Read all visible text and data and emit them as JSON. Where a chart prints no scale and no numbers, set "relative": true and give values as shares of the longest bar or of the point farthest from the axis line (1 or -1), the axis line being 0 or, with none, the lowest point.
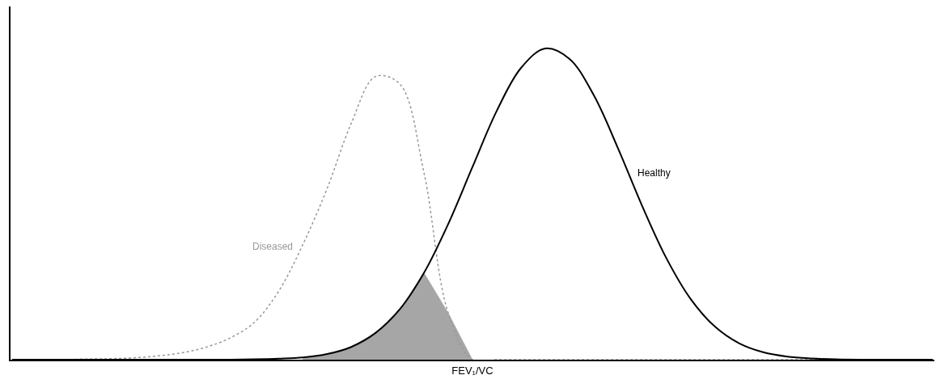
{
  "chart_data": {
    "type": "line",
    "relative": true,
    "xlabel": "FEV₁/VC",
    "legend": false,
    "tick_labels": false,
    "categories": [
      null,
      null,
      null,
      null,
      null,
      null,
      null,
      null,
      null,
      null,
      null,
      null,
      null,
      null,
      null,
      null,
      null,
      null,
      null,
      null,
      null,
      null,
      null,
      null,
      null,
      null,
      null,
      null,
      null,
      null,
      null,
      null,
      null,
      null,
      null,
      null,
      null,
      null,
      null
    ],
    "series": [
      {
        "type": "area",
        "color": "#a6a6a6",
        "values": [
          null,
          null,
          null,
          null,
          null,
          null,
          null,
          null,
          null,
          null,
          null,
          null,
          0.007,
          0.018,
          0.041,
          0.086,
          0.162,
          0.279,
          0.15,
          0,
          null,
          null,
          null,
          null,
          null,
          null,
          null,
          null,
          null,
          null,
          null,
          null,
          null,
          null,
          null,
          null,
          null,
          null,
          null
        ]
      },
      {
        "name": "Diseased",
        "color": "#999999",
        "line_style": "dotted",
        "values": [
          0,
          0,
          0,
          0.002,
          0.003,
          0.006,
          0.012,
          0.022,
          0.04,
          0.07,
          0.12,
          0.22,
          0.37,
          0.55,
          0.76,
          0.91,
          0.886,
          0.6,
          0.15,
          0,
          0,
          0,
          0,
          0,
          0,
          0,
          0,
          0,
          0,
          0,
          0,
          0,
          0,
          0,
          0,
          0,
          0,
          0,
          0
        ]
      },
      {
        "name": "Healthy",
        "color": "#000000",
        "line_style": "solid",
        "values": [
          0,
          0,
          0,
          0,
          0,
          0,
          0,
          0,
          0,
          0,
          0.001,
          0.003,
          0.007,
          0.018,
          0.041,
          0.086,
          0.162,
          0.279,
          0.436,
          0.619,
          0.799,
          0.937,
          1,
          0.967,
          0.851,
          0.681,
          0.495,
          0.327,
          0.196,
          0.107,
          0.053,
          0.024,
          0.01,
          0.004,
          0.001,
          0,
          0,
          0,
          0
        ]
      }
    ]
  }
}
